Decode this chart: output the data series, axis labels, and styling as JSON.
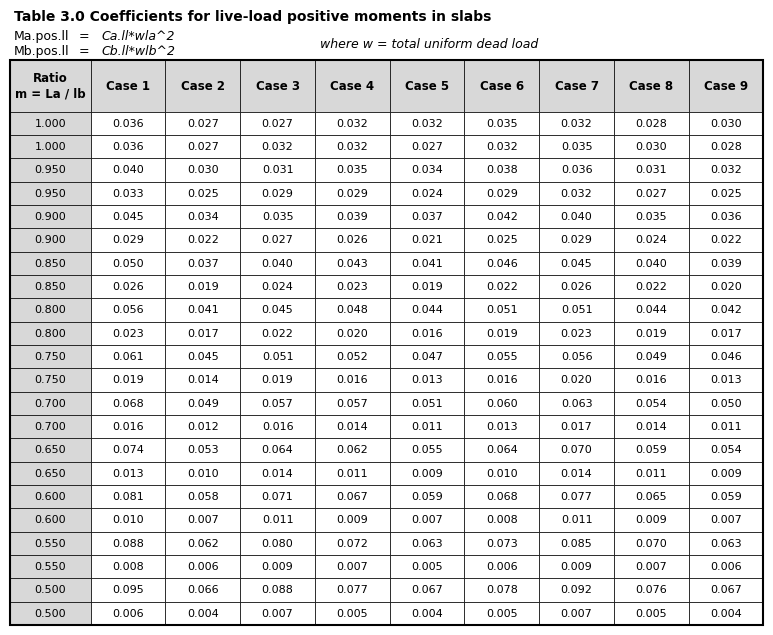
{
  "title": "Table 3.0 Coefficients for live-load positive moments in slabs",
  "where_text": "where w = total uniform dead load",
  "col_headers": [
    "Ratio\nm = La / lb",
    "Case 1",
    "Case 2",
    "Case 3",
    "Case 4",
    "Case 5",
    "Case 6",
    "Case 7",
    "Case 8",
    "Case 9"
  ],
  "rows": [
    [
      "1.000",
      "0.036",
      "0.027",
      "0.027",
      "0.032",
      "0.032",
      "0.035",
      "0.032",
      "0.028",
      "0.030"
    ],
    [
      "1.000",
      "0.036",
      "0.027",
      "0.032",
      "0.032",
      "0.027",
      "0.032",
      "0.035",
      "0.030",
      "0.028"
    ],
    [
      "0.950",
      "0.040",
      "0.030",
      "0.031",
      "0.035",
      "0.034",
      "0.038",
      "0.036",
      "0.031",
      "0.032"
    ],
    [
      "0.950",
      "0.033",
      "0.025",
      "0.029",
      "0.029",
      "0.024",
      "0.029",
      "0.032",
      "0.027",
      "0.025"
    ],
    [
      "0.900",
      "0.045",
      "0.034",
      "0.035",
      "0.039",
      "0.037",
      "0.042",
      "0.040",
      "0.035",
      "0.036"
    ],
    [
      "0.900",
      "0.029",
      "0.022",
      "0.027",
      "0.026",
      "0.021",
      "0.025",
      "0.029",
      "0.024",
      "0.022"
    ],
    [
      "0.850",
      "0.050",
      "0.037",
      "0.040",
      "0.043",
      "0.041",
      "0.046",
      "0.045",
      "0.040",
      "0.039"
    ],
    [
      "0.850",
      "0.026",
      "0.019",
      "0.024",
      "0.023",
      "0.019",
      "0.022",
      "0.026",
      "0.022",
      "0.020"
    ],
    [
      "0.800",
      "0.056",
      "0.041",
      "0.045",
      "0.048",
      "0.044",
      "0.051",
      "0.051",
      "0.044",
      "0.042"
    ],
    [
      "0.800",
      "0.023",
      "0.017",
      "0.022",
      "0.020",
      "0.016",
      "0.019",
      "0.023",
      "0.019",
      "0.017"
    ],
    [
      "0.750",
      "0.061",
      "0.045",
      "0.051",
      "0.052",
      "0.047",
      "0.055",
      "0.056",
      "0.049",
      "0.046"
    ],
    [
      "0.750",
      "0.019",
      "0.014",
      "0.019",
      "0.016",
      "0.013",
      "0.016",
      "0.020",
      "0.016",
      "0.013"
    ],
    [
      "0.700",
      "0.068",
      "0.049",
      "0.057",
      "0.057",
      "0.051",
      "0.060",
      "0.063",
      "0.054",
      "0.050"
    ],
    [
      "0.700",
      "0.016",
      "0.012",
      "0.016",
      "0.014",
      "0.011",
      "0.013",
      "0.017",
      "0.014",
      "0.011"
    ],
    [
      "0.650",
      "0.074",
      "0.053",
      "0.064",
      "0.062",
      "0.055",
      "0.064",
      "0.070",
      "0.059",
      "0.054"
    ],
    [
      "0.650",
      "0.013",
      "0.010",
      "0.014",
      "0.011",
      "0.009",
      "0.010",
      "0.014",
      "0.011",
      "0.009"
    ],
    [
      "0.600",
      "0.081",
      "0.058",
      "0.071",
      "0.067",
      "0.059",
      "0.068",
      "0.077",
      "0.065",
      "0.059"
    ],
    [
      "0.600",
      "0.010",
      "0.007",
      "0.011",
      "0.009",
      "0.007",
      "0.008",
      "0.011",
      "0.009",
      "0.007"
    ],
    [
      "0.550",
      "0.088",
      "0.062",
      "0.080",
      "0.072",
      "0.063",
      "0.073",
      "0.085",
      "0.070",
      "0.063"
    ],
    [
      "0.550",
      "0.008",
      "0.006",
      "0.009",
      "0.007",
      "0.005",
      "0.006",
      "0.009",
      "0.007",
      "0.006"
    ],
    [
      "0.500",
      "0.095",
      "0.066",
      "0.088",
      "0.077",
      "0.067",
      "0.078",
      "0.092",
      "0.076",
      "0.067"
    ],
    [
      "0.500",
      "0.006",
      "0.004",
      "0.007",
      "0.005",
      "0.004",
      "0.005",
      "0.007",
      "0.005",
      "0.004"
    ]
  ],
  "bg_color": "#ffffff",
  "header_bg": "#d8d8d8",
  "border_color": "#000000",
  "text_color": "#000000",
  "font_size": 8.0,
  "header_font_size": 8.5
}
